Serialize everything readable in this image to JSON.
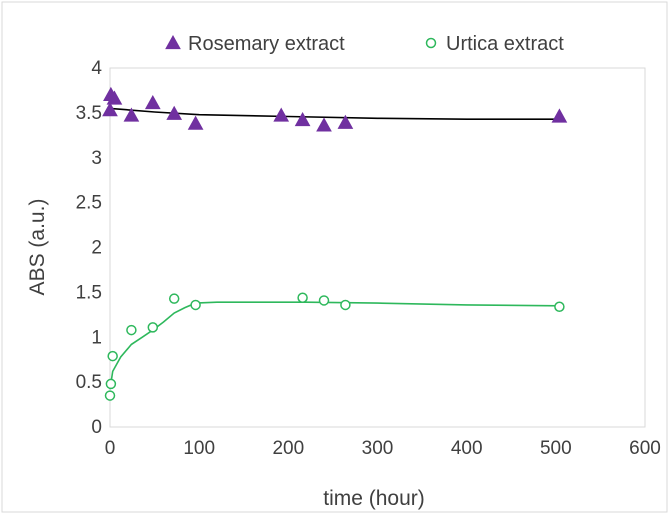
{
  "chart_data": {
    "type": "scatter",
    "xlabel": "time (hour)",
    "ylabel": "ABS (a.u.)",
    "xlim": [
      0,
      600
    ],
    "ylim": [
      0,
      4
    ],
    "x_ticks": [
      "0",
      "100",
      "200",
      "300",
      "400",
      "500",
      "600"
    ],
    "y_ticks": [
      "0",
      "0.5",
      "1",
      "1.5",
      "2",
      "2.5",
      "3",
      "3.5",
      "4"
    ],
    "grid": false,
    "legend_position": "top",
    "series": [
      {
        "name": "Rosemary extract",
        "marker": "filled-triangle",
        "color": "#7030a0",
        "line_color": "#000000",
        "x": [
          0,
          1,
          5,
          24,
          48,
          72,
          96,
          192,
          216,
          240,
          264,
          504
        ],
        "y": [
          3.53,
          3.7,
          3.66,
          3.47,
          3.61,
          3.49,
          3.38,
          3.47,
          3.42,
          3.36,
          3.39,
          3.46
        ],
        "trend_x": [
          0,
          50,
          100,
          200,
          300,
          400,
          504
        ],
        "trend_y": [
          3.55,
          3.51,
          3.48,
          3.46,
          3.44,
          3.43,
          3.43
        ]
      },
      {
        "name": "Urtica extract",
        "marker": "open-circle",
        "color": "#2eb85c",
        "line_color": "#2eb85c",
        "x": [
          0,
          1,
          3,
          24,
          48,
          72,
          96,
          216,
          240,
          264,
          504
        ],
        "y": [
          0.35,
          0.48,
          0.79,
          1.08,
          1.11,
          1.43,
          1.36,
          1.44,
          1.41,
          1.36,
          1.34
        ],
        "trend_x": [
          0,
          3,
          12,
          24,
          36,
          48,
          60,
          72,
          84,
          96,
          120,
          160,
          220,
          300,
          400,
          504
        ],
        "trend_y": [
          0.42,
          0.62,
          0.78,
          0.92,
          1.0,
          1.08,
          1.17,
          1.27,
          1.33,
          1.38,
          1.39,
          1.39,
          1.39,
          1.38,
          1.36,
          1.35
        ]
      }
    ]
  }
}
